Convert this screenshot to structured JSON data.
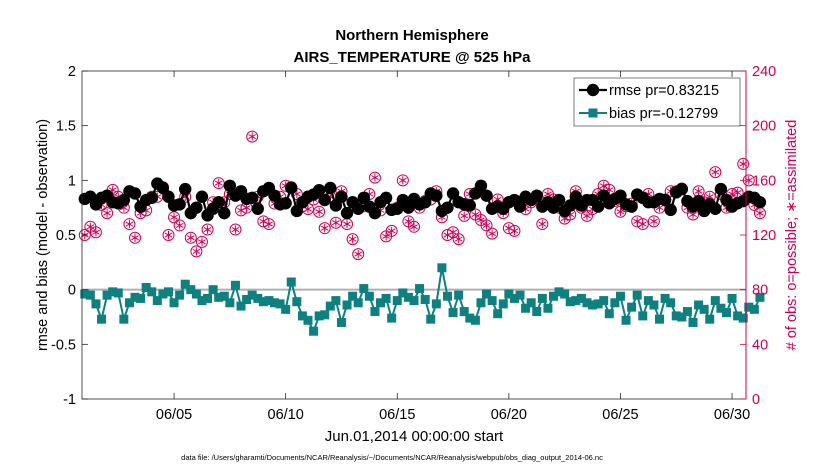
{
  "chart_data": {
    "type": "line",
    "title": [
      "Northern Hemisphere",
      "AIRS_TEMPERATURE @ 525 hPa"
    ],
    "xlabel": "Jun.01,2014 00:00:00 start",
    "ylabel_left": "rmse and bias (model - observation)",
    "ylabel_right": "# of obs: o=possible; ∗=assimilated",
    "footnote": "data file: /Users/gharamti/Documents/NCAR/Reanalysis/~/Documents/NCAR/Reanalysis/webpub/obs_diag_output_2014-06.nc",
    "xlim": [
      0.875,
      30.625
    ],
    "ylim_left": [
      -1,
      2
    ],
    "ylim_right": [
      0,
      240
    ],
    "x_ticks": [
      5,
      10,
      15,
      20,
      25,
      30
    ],
    "x_tick_labels": [
      "06/05",
      "06/10",
      "06/15",
      "06/20",
      "06/25",
      "06/30"
    ],
    "y_left_ticks": [
      -1,
      -0.5,
      0,
      0.5,
      1,
      1.5,
      2
    ],
    "y_left_tick_labels": [
      "-1",
      "-0.5",
      "0",
      "0.5",
      "1",
      "1.5",
      "2"
    ],
    "y_right_ticks": [
      0,
      40,
      80,
      120,
      160,
      200,
      240
    ],
    "y_right_tick_labels": [
      "0",
      "40",
      "80",
      "120",
      "160",
      "200",
      "240"
    ],
    "legend_position": "top-right",
    "zero_line": 0,
    "x_step_days": 0.25,
    "colors": {
      "rmse": "#000000",
      "bias": "#0e8080",
      "obs": "#cc0055",
      "zero_line": "#b0b0b0"
    },
    "series": [
      {
        "name": "rmse pr=0.83215",
        "axis": "left",
        "marker": "circle",
        "values": [
          0.83,
          0.85,
          0.78,
          0.84,
          0.86,
          0.8,
          0.79,
          0.82,
          0.9,
          0.88,
          0.76,
          0.82,
          0.84,
          0.97,
          0.93,
          0.85,
          0.77,
          0.78,
          0.92,
          0.7,
          0.75,
          0.85,
          0.68,
          0.74,
          0.8,
          0.7,
          0.95,
          0.86,
          0.9,
          0.83,
          0.84,
          0.74,
          0.9,
          0.93,
          0.86,
          0.78,
          0.79,
          0.93,
          0.72,
          0.8,
          0.85,
          0.87,
          0.91,
          0.82,
          0.93,
          0.77,
          0.85,
          0.7,
          0.8,
          0.74,
          0.84,
          0.76,
          0.7,
          0.8,
          0.84,
          0.73,
          0.74,
          0.82,
          0.75,
          0.83,
          0.78,
          0.8,
          0.88,
          0.86,
          0.72,
          0.75,
          0.88,
          0.8,
          0.78,
          0.77,
          0.88,
          0.95,
          0.86,
          0.74,
          0.76,
          0.74,
          0.8,
          0.82,
          0.76,
          0.85,
          0.82,
          0.86,
          0.76,
          0.8,
          0.75,
          0.82,
          0.72,
          0.77,
          0.85,
          0.77,
          0.82,
          0.82,
          0.76,
          0.86,
          0.79,
          0.83,
          0.86,
          0.78,
          0.76,
          0.87,
          0.84,
          0.8,
          0.8,
          0.83,
          0.82,
          0.73,
          0.89,
          0.92,
          0.81,
          0.76,
          0.81,
          0.72,
          0.78,
          0.74,
          0.92,
          0.82,
          0.76,
          0.79,
          0.81,
          0.85,
          0.84,
          0.8
        ]
      },
      {
        "name": "bias pr=-0.12799",
        "axis": "left",
        "marker": "square",
        "values": [
          -0.04,
          -0.05,
          -0.13,
          -0.27,
          -0.05,
          -0.02,
          -0.03,
          -0.27,
          -0.12,
          -0.07,
          -0.08,
          0.02,
          -0.02,
          -0.1,
          -0.04,
          -0.02,
          -0.12,
          -0.05,
          0.05,
          0.0,
          -0.04,
          -0.1,
          -0.08,
          0.0,
          -0.07,
          -0.06,
          -0.12,
          0.04,
          -0.15,
          -0.09,
          -0.05,
          -0.08,
          -0.11,
          -0.1,
          -0.12,
          -0.13,
          -0.18,
          0.07,
          -0.11,
          -0.24,
          -0.28,
          -0.38,
          -0.24,
          -0.23,
          -0.15,
          -0.1,
          -0.3,
          -0.14,
          -0.06,
          -0.12,
          0.01,
          -0.06,
          -0.2,
          -0.12,
          -0.08,
          -0.26,
          -0.1,
          -0.03,
          -0.07,
          -0.1,
          0.01,
          -0.09,
          -0.27,
          -0.13,
          0.2,
          -0.06,
          -0.21,
          -0.05,
          -0.2,
          -0.26,
          -0.28,
          -0.12,
          -0.04,
          -0.1,
          -0.22,
          -0.13,
          -0.04,
          -0.08,
          -0.05,
          -0.17,
          -0.12,
          -0.2,
          -0.08,
          -0.17,
          -0.06,
          -0.02,
          -0.04,
          -0.11,
          -0.1,
          -0.08,
          -0.12,
          -0.14,
          -0.13,
          -0.1,
          -0.22,
          -0.12,
          -0.06,
          -0.28,
          -0.16,
          -0.05,
          -0.24,
          -0.1,
          -0.14,
          -0.27,
          -0.08,
          -0.12,
          -0.24,
          -0.25,
          -0.2,
          -0.3,
          -0.14,
          -0.18,
          -0.27,
          -0.1,
          -0.17,
          -0.21,
          -0.08,
          -0.24,
          -0.26,
          -0.16,
          -0.18,
          -0.07
        ]
      },
      {
        "name": "possible",
        "axis": "right",
        "marker": "circle-open",
        "values": [
          120,
          126,
          122,
          142,
          136,
          153,
          148,
          140,
          128,
          118,
          136,
          138,
          148,
          148,
          155,
          120,
          133,
          127,
          148,
          118,
          108,
          115,
          124,
          144,
          158,
          144,
          150,
          124,
          138,
          140,
          192,
          148,
          130,
          128,
          143,
          148,
          156,
          155,
          150,
          141,
          139,
          146,
          137,
          125,
          148,
          129,
          152,
          128,
          117,
          106,
          141,
          150,
          162,
          138,
          119,
          123,
          140,
          160,
          130,
          126,
          140,
          145,
          146,
          152,
          133,
          120,
          122,
          117,
          134,
          150,
          135,
          131,
          127,
          121,
          146,
          136,
          125,
          123,
          142,
          139,
          144,
          148,
          128,
          150,
          146,
          140,
          132,
          135,
          152,
          140,
          134,
          139,
          150,
          156,
          153,
          145,
          137,
          141,
          143,
          130,
          128,
          150,
          130,
          140,
          146,
          152,
          152,
          154,
          140,
          135,
          152,
          144,
          148,
          166,
          150,
          140,
          150,
          151,
          172,
          160,
          142,
          136
        ]
      },
      {
        "name": "assimilated",
        "axis": "right",
        "marker": "asterisk",
        "values": [
          120,
          126,
          122,
          142,
          136,
          153,
          148,
          140,
          128,
          118,
          136,
          138,
          148,
          148,
          155,
          120,
          133,
          127,
          148,
          118,
          108,
          115,
          124,
          144,
          158,
          144,
          150,
          124,
          138,
          140,
          192,
          148,
          130,
          128,
          143,
          148,
          156,
          155,
          150,
          141,
          139,
          146,
          137,
          125,
          148,
          129,
          152,
          128,
          117,
          106,
          141,
          150,
          162,
          138,
          119,
          123,
          140,
          160,
          130,
          126,
          140,
          145,
          146,
          152,
          133,
          120,
          122,
          117,
          134,
          150,
          135,
          131,
          127,
          121,
          146,
          136,
          125,
          123,
          142,
          139,
          144,
          148,
          128,
          150,
          146,
          140,
          132,
          135,
          152,
          140,
          134,
          139,
          150,
          156,
          153,
          145,
          137,
          141,
          143,
          130,
          128,
          150,
          130,
          140,
          146,
          152,
          152,
          154,
          140,
          135,
          152,
          144,
          148,
          166,
          150,
          140,
          150,
          151,
          172,
          160,
          142,
          136
        ]
      }
    ]
  }
}
